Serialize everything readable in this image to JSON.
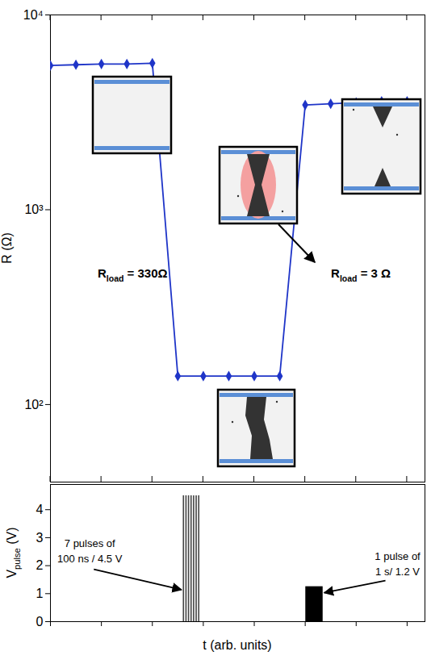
{
  "chart_data": {
    "type": "line",
    "x_label": "t (arb. units)",
    "xlim": [
      0,
      7.35
    ],
    "xticks": [
      0,
      1,
      2,
      3,
      4,
      5,
      6,
      7
    ],
    "tick_labels": "y",
    "panels": [
      {
        "type": "line",
        "y_label": {
          "text": "R (Ω)"
        },
        "log": "y",
        "ylim": [
          40,
          10000
        ],
        "yticks": [
          {
            "value": 100,
            "label": "10²"
          },
          {
            "value": 1000,
            "label": "10³"
          },
          {
            "value": 10000,
            "label": "10⁴"
          }
        ],
        "series": [
          {
            "color": "#1f35c8",
            "marker": "diamond",
            "line_style": "solid",
            "x": [
              0,
              0.5,
              1,
              1.5,
              2,
              2.5,
              3,
              3.5,
              4,
              4.5,
              5,
              5.5,
              6,
              6.5,
              7
            ],
            "values": [
              5500,
              5550,
              5600,
              5600,
              5650,
              140,
              140,
              140,
              140,
              140,
              3450,
              3500,
              3550,
              3600,
              3600
            ]
          }
        ],
        "annotations": [
          {
            "text": "R",
            "subscript": "load",
            "suffix": " = 330Ω",
            "x": 1.62,
            "y": 445
          },
          {
            "text": "R",
            "subscript": "load",
            "suffix": " = 3 Ω",
            "x": 6.1,
            "y": 445
          }
        ]
      },
      {
        "type": "bar",
        "y_label": {
          "text": "V",
          "subscript": "pulse",
          "suffix": " (V)"
        },
        "ylim": [
          0,
          4.9
        ],
        "yticks": [
          0,
          1,
          2,
          3,
          4
        ],
        "series": [
          {
            "type": "rule",
            "color": "#444444",
            "x": [
              2.61,
              2.66,
              2.71,
              2.76,
              2.81,
              2.86,
              2.91
            ],
            "values": [
              4.5,
              4.5,
              4.5,
              4.5,
              4.5,
              4.5,
              4.5
            ]
          },
          {
            "type": "bar",
            "color": "#000000",
            "x": [
              5.01
            ],
            "x_end": [
              5.35
            ],
            "values": [
              1.25
            ]
          }
        ],
        "annotations": [
          {
            "lines": [
              "7 pulses of",
              "100 ns / 4.5 V"
            ],
            "x": 0.78,
            "y": 2.66
          },
          {
            "lines": [
              "1 pulse of",
              "1 s/ 1.2 V"
            ],
            "x": 6.82,
            "y": 2.2
          }
        ]
      }
    ]
  }
}
